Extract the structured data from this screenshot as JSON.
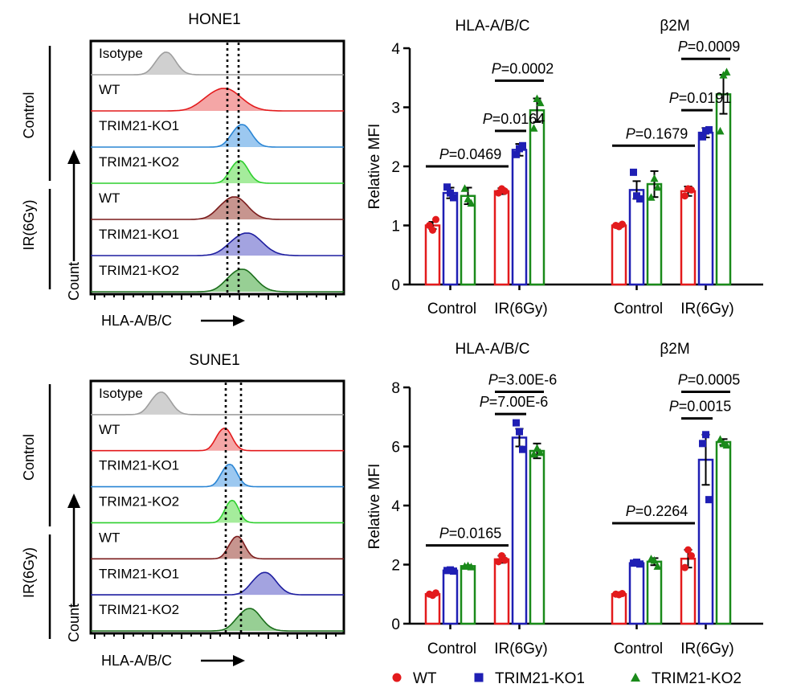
{
  "legend": [
    {
      "label": "WT",
      "color": "#e31a1c",
      "marker": "circle"
    },
    {
      "label": "TRIM21-KO1",
      "color": "#1f1fb4",
      "marker": "square"
    },
    {
      "label": "TRIM21-KO2",
      "color": "#1a8a1a",
      "marker": "triangle"
    }
  ],
  "histograms": [
    {
      "title": "HONE1",
      "group_labels": [
        "Control",
        "IR(6Gy)"
      ],
      "y_axis_label": "Count",
      "x_axis_label": "HLA-A/B/C",
      "tracks": [
        {
          "label": "Isotype",
          "color": "#9e9e9e",
          "fill": "#d0d0d0",
          "peak": 0.3,
          "width": 0.05
        },
        {
          "label": "WT",
          "color": "#e31a1c",
          "fill": "#f4a6a6",
          "peak": 0.53,
          "width": 0.09
        },
        {
          "label": "TRIM21-KO1",
          "color": "#2a85d4",
          "fill": "#9cc8f0",
          "peak": 0.6,
          "width": 0.05
        },
        {
          "label": "TRIM21-KO2",
          "color": "#2fcf2f",
          "fill": "#a5ec9c",
          "peak": 0.59,
          "width": 0.045
        },
        {
          "label": "WT",
          "color": "#7b1c1c",
          "fill": "#c7958f",
          "peak": 0.57,
          "width": 0.07
        },
        {
          "label": "TRIM21-KO1",
          "color": "#1f1fa0",
          "fill": "#a3a3e0",
          "peak": 0.62,
          "width": 0.08
        },
        {
          "label": "TRIM21-KO2",
          "color": "#1b6e1b",
          "fill": "#97cf94",
          "peak": 0.6,
          "width": 0.07
        }
      ]
    },
    {
      "title": "SUNE1",
      "group_labels": [
        "Control",
        "IR(6Gy)"
      ],
      "y_axis_label": "Count",
      "x_axis_label": "HLA-A/B/C",
      "tracks": [
        {
          "label": "Isotype",
          "color": "#9e9e9e",
          "fill": "#d0d0d0",
          "peak": 0.28,
          "width": 0.05
        },
        {
          "label": "WT",
          "color": "#e31a1c",
          "fill": "#f4a6a6",
          "peak": 0.53,
          "width": 0.04
        },
        {
          "label": "TRIM21-KO1",
          "color": "#2a85d4",
          "fill": "#9cc8f0",
          "peak": 0.55,
          "width": 0.04
        },
        {
          "label": "TRIM21-KO2",
          "color": "#2fcf2f",
          "fill": "#a5ec9c",
          "peak": 0.56,
          "width": 0.035
        },
        {
          "label": "WT",
          "color": "#7b1c1c",
          "fill": "#c7958f",
          "peak": 0.58,
          "width": 0.04
        },
        {
          "label": "TRIM21-KO1",
          "color": "#1f1fa0",
          "fill": "#a3a3e0",
          "peak": 0.69,
          "width": 0.06
        },
        {
          "label": "TRIM21-KO2",
          "color": "#1b6e1b",
          "fill": "#97cf94",
          "peak": 0.63,
          "width": 0.06
        }
      ]
    }
  ],
  "chart_data": [
    {
      "type": "bar",
      "ylabel": "Relative MFI",
      "ylim": [
        0,
        4
      ],
      "yticks": [
        0,
        1,
        2,
        3,
        4
      ],
      "panels": [
        {
          "title": "HLA-A/B/C",
          "categories": [
            "Control",
            "IR(6Gy)"
          ],
          "series": [
            {
              "name": "WT",
              "means": [
                1.0,
                1.58
              ],
              "errors": [
                0.06,
                0.05
              ],
              "points": [
                [
                  1.0,
                  0.92,
                  1.1
                ],
                [
                  1.55,
                  1.62,
                  1.58
                ]
              ]
            },
            {
              "name": "TRIM21-KO1",
              "means": [
                1.55,
                2.28
              ],
              "errors": [
                0.09,
                0.1
              ],
              "points": [
                [
                  1.65,
                  1.55,
                  1.47
                ],
                [
                  2.2,
                  2.3,
                  2.35
                ]
              ]
            },
            {
              "name": "TRIM21-KO2",
              "means": [
                1.5,
                2.95
              ],
              "errors": [
                0.14,
                0.2
              ],
              "points": [
                [
                  1.63,
                  1.45,
                  1.38
                ],
                [
                  2.65,
                  3.15,
                  3.08
                ]
              ]
            }
          ],
          "comparisons": [
            {
              "text": "=0.0469",
              "from_category": 0,
              "from_series": 0,
              "to_category": 1,
              "to_series": 0,
              "y": 2.0
            },
            {
              "text": "=0.0164",
              "from_category": 1,
              "from_series": 0,
              "to_category": 1,
              "to_series": 1,
              "y": 2.6
            },
            {
              "text": "=0.0002",
              "from_category": 1,
              "from_series": 0,
              "to_category": 1,
              "to_series": 2,
              "y": 3.45
            }
          ]
        },
        {
          "title": "β2M",
          "categories": [
            "Control",
            "IR(6Gy)"
          ],
          "series": [
            {
              "name": "WT",
              "means": [
                1.0,
                1.58
              ],
              "errors": [
                0.03,
                0.08
              ],
              "points": [
                [
                  1.0,
                  0.98,
                  1.02
                ],
                [
                  1.5,
                  1.62,
                  1.6
                ]
              ]
            },
            {
              "name": "TRIM21-KO1",
              "means": [
                1.6,
                2.57
              ],
              "errors": [
                0.15,
                0.08
              ],
              "points": [
                [
                  1.9,
                  1.5,
                  1.45
                ],
                [
                  2.5,
                  2.6,
                  2.62
                ]
              ]
            },
            {
              "name": "TRIM21-KO2",
              "means": [
                1.7,
                3.22
              ],
              "errors": [
                0.22,
                0.33
              ],
              "points": [
                [
                  1.48,
                  1.8,
                  1.65
                ],
                [
                  2.6,
                  3.55,
                  3.6
                ]
              ]
            }
          ],
          "comparisons": [
            {
              "text": "=0.1679",
              "from_category": 0,
              "from_series": 0,
              "to_category": 1,
              "to_series": 0,
              "y": 2.35
            },
            {
              "text": "=0.0191",
              "from_category": 1,
              "from_series": 0,
              "to_category": 1,
              "to_series": 1,
              "y": 2.95
            },
            {
              "text": "=0.0009",
              "from_category": 1,
              "from_series": 0,
              "to_category": 1,
              "to_series": 2,
              "y": 3.82
            }
          ]
        }
      ]
    },
    {
      "type": "bar",
      "ylabel": "Relative MFI",
      "ylim": [
        0,
        8
      ],
      "yticks": [
        0,
        2,
        4,
        6,
        8
      ],
      "panels": [
        {
          "title": "HLA-A/B/C",
          "categories": [
            "Control",
            "IR(6Gy)"
          ],
          "series": [
            {
              "name": "WT",
              "means": [
                1.0,
                2.18
              ],
              "errors": [
                0.05,
                0.12
              ],
              "points": [
                [
                  1.0,
                  0.96,
                  1.04
                ],
                [
                  2.1,
                  2.3,
                  2.15
                ]
              ]
            },
            {
              "name": "TRIM21-KO1",
              "means": [
                1.8,
                6.3
              ],
              "errors": [
                0.05,
                0.3
              ],
              "points": [
                [
                  1.8,
                  1.82,
                  1.78
                ],
                [
                  6.8,
                  6.5,
                  5.9
                ]
              ]
            },
            {
              "name": "TRIM21-KO2",
              "means": [
                1.95,
                5.85
              ],
              "errors": [
                0.03,
                0.25
              ],
              "points": [
                [
                  1.95,
                  1.97,
                  1.93
                ],
                [
                  5.75,
                  5.95,
                  5.8
                ]
              ]
            }
          ],
          "comparisons": [
            {
              "text": "=0.0165",
              "from_category": 0,
              "from_series": 0,
              "to_category": 1,
              "to_series": 0,
              "y": 2.65
            },
            {
              "text": "=7.00E-6",
              "from_category": 1,
              "from_series": 0,
              "to_category": 1,
              "to_series": 1,
              "y": 7.1
            },
            {
              "text": "=3.00E-6",
              "from_category": 1,
              "from_series": 0,
              "to_category": 1,
              "to_series": 2,
              "y": 7.85
            }
          ]
        },
        {
          "title": "β2M",
          "categories": [
            "Control",
            "IR(6Gy)"
          ],
          "series": [
            {
              "name": "WT",
              "means": [
                1.0,
                2.2
              ],
              "errors": [
                0.03,
                0.3
              ],
              "points": [
                [
                  1.0,
                  0.98,
                  1.02
                ],
                [
                  1.9,
                  2.5,
                  2.3
                ]
              ]
            },
            {
              "name": "TRIM21-KO1",
              "means": [
                2.05,
                5.55
              ],
              "errors": [
                0.04,
                0.85
              ],
              "points": [
                [
                  2.05,
                  2.08,
                  2.02
                ],
                [
                  6.1,
                  6.4,
                  4.2
                ]
              ]
            },
            {
              "name": "TRIM21-KO2",
              "means": [
                2.1,
                6.15
              ],
              "errors": [
                0.12,
                0.1
              ],
              "points": [
                [
                  2.2,
                  2.15,
                  1.95
                ],
                [
                  6.25,
                  6.1,
                  6.05
                ]
              ]
            }
          ],
          "comparisons": [
            {
              "text": "=0.2264",
              "from_category": 0,
              "from_series": 0,
              "to_category": 1,
              "to_series": 0,
              "y": 3.4
            },
            {
              "text": "=0.0015",
              "from_category": 1,
              "from_series": 0,
              "to_category": 1,
              "to_series": 1,
              "y": 6.95
            },
            {
              "text": "=0.0005",
              "from_category": 1,
              "from_series": 0,
              "to_category": 1,
              "to_series": 2,
              "y": 7.85
            }
          ]
        }
      ]
    }
  ]
}
